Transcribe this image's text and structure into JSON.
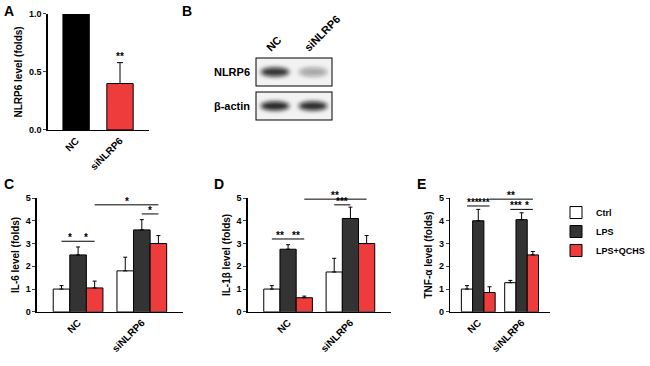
{
  "chart_data": [
    {
      "type": "bar",
      "panel": "A",
      "ylabel": "NLRP6 level (folds)",
      "categories": [
        "NC",
        "siNLRP6"
      ],
      "values": [
        1.0,
        0.4
      ],
      "errors": [
        0,
        0.18
      ],
      "colors": [
        "#000000",
        "#ee3b3b"
      ],
      "ylim": [
        0,
        1.0
      ],
      "yticks": [
        {
          "value": 0,
          "label": "0.0"
        },
        0.5,
        {
          "value": 1.0,
          "label": "1.0"
        }
      ],
      "grid": false,
      "significance": [
        {
          "category": "siNLRP6",
          "y": 0.6,
          "label": "**"
        }
      ]
    },
    {
      "type": "bar",
      "panel": "C",
      "ylabel": "IL-6 level (folds)",
      "categories": [
        "NC",
        "siNLRP6"
      ],
      "series": [
        {
          "name": "Ctrl",
          "color": "#ffffff",
          "values": [
            1.0,
            1.8
          ],
          "errors": [
            0.15,
            0.6
          ]
        },
        {
          "name": "LPS",
          "color": "#333333",
          "values": [
            2.5,
            3.6
          ],
          "errors": [
            0.35,
            0.45
          ]
        },
        {
          "name": "LPS+QCHS",
          "color": "#ee3b3b",
          "values": [
            1.05,
            3.0
          ],
          "errors": [
            0.3,
            0.35
          ]
        }
      ],
      "ylim": [
        0,
        5
      ],
      "yticks": [
        0,
        1,
        2,
        3,
        4,
        5
      ],
      "grid": false,
      "significance": [
        {
          "from": [
            "NC",
            "Ctrl"
          ],
          "to": [
            "NC",
            "LPS"
          ],
          "y": 3.1,
          "label": "*"
        },
        {
          "from": [
            "NC",
            "LPS"
          ],
          "to": [
            "NC",
            "LPS+QCHS"
          ],
          "y": 3.1,
          "label": "*"
        },
        {
          "from": [
            "siNLRP6",
            "LPS"
          ],
          "to": [
            "siNLRP6",
            "LPS+QCHS"
          ],
          "y": 4.3,
          "label": "*"
        },
        {
          "from": [
            "NC",
            "LPS+QCHS"
          ],
          "to": [
            "siNLRP6",
            "LPS+QCHS"
          ],
          "y": 4.7,
          "label": "*"
        }
      ]
    },
    {
      "type": "bar",
      "panel": "D",
      "ylabel": "IL-1β level (folds)",
      "categories": [
        "NC",
        "siNLRP6"
      ],
      "series": [
        {
          "name": "Ctrl",
          "color": "#ffffff",
          "values": [
            1.0,
            1.75
          ],
          "errors": [
            0.15,
            0.6
          ]
        },
        {
          "name": "LPS",
          "color": "#333333",
          "values": [
            2.75,
            4.1
          ],
          "errors": [
            0.2,
            0.5
          ]
        },
        {
          "name": "LPS+QCHS",
          "color": "#ee3b3b",
          "values": [
            0.62,
            3.0
          ],
          "errors": [
            0.07,
            0.35
          ]
        }
      ],
      "ylim": [
        0,
        5
      ],
      "yticks": [
        0,
        1,
        2,
        3,
        4,
        5
      ],
      "grid": false,
      "significance": [
        {
          "from": [
            "NC",
            "Ctrl"
          ],
          "to": [
            "NC",
            "LPS"
          ],
          "y": 3.2,
          "label": "**"
        },
        {
          "from": [
            "NC",
            "LPS"
          ],
          "to": [
            "NC",
            "LPS+QCHS"
          ],
          "y": 3.2,
          "label": "**"
        },
        {
          "from": [
            "siNLRP6",
            "Ctrl"
          ],
          "to": [
            "siNLRP6",
            "LPS"
          ],
          "y": 4.7,
          "label": "***"
        },
        {
          "from": [
            "NC",
            "LPS+QCHS"
          ],
          "to": [
            "siNLRP6",
            "LPS+QCHS"
          ],
          "y": 4.95,
          "label": "**"
        }
      ]
    },
    {
      "type": "bar",
      "panel": "E",
      "ylabel": "TNF-α level (folds)",
      "categories": [
        "NC",
        "siNLRP6"
      ],
      "series": [
        {
          "name": "Ctrl",
          "color": "#ffffff",
          "values": [
            1.0,
            1.28
          ],
          "errors": [
            0.15,
            0.1
          ]
        },
        {
          "name": "LPS",
          "color": "#333333",
          "values": [
            4.0,
            4.05
          ],
          "errors": [
            0.5,
            0.3
          ]
        },
        {
          "name": "LPS+QCHS",
          "color": "#ee3b3b",
          "values": [
            0.85,
            2.5
          ],
          "errors": [
            0.25,
            0.15
          ]
        }
      ],
      "ylim": [
        0,
        5
      ],
      "yticks": [
        0,
        1,
        2,
        3,
        4,
        5
      ],
      "grid": false,
      "legend": "right",
      "significance": [
        {
          "from": [
            "NC",
            "Ctrl"
          ],
          "to": [
            "NC",
            "LPS"
          ],
          "y": 4.65,
          "label": "***"
        },
        {
          "from": [
            "NC",
            "LPS"
          ],
          "to": [
            "NC",
            "LPS+QCHS"
          ],
          "y": 4.65,
          "label": "***"
        },
        {
          "from": [
            "siNLRP6",
            "Ctrl"
          ],
          "to": [
            "siNLRP6",
            "LPS"
          ],
          "y": 4.5,
          "label": "***"
        },
        {
          "from": [
            "siNLRP6",
            "LPS"
          ],
          "to": [
            "siNLRP6",
            "LPS+QCHS"
          ],
          "y": 4.5,
          "label": "*"
        },
        {
          "from": [
            "NC",
            "LPS+QCHS"
          ],
          "to": [
            "siNLRP6",
            "LPS+QCHS"
          ],
          "y": 4.95,
          "label": "**"
        }
      ]
    }
  ],
  "blot": {
    "panel": "B",
    "lanes": [
      "NC",
      "siNLRP6"
    ],
    "rows": [
      "NLRP6",
      "β-actin"
    ]
  }
}
